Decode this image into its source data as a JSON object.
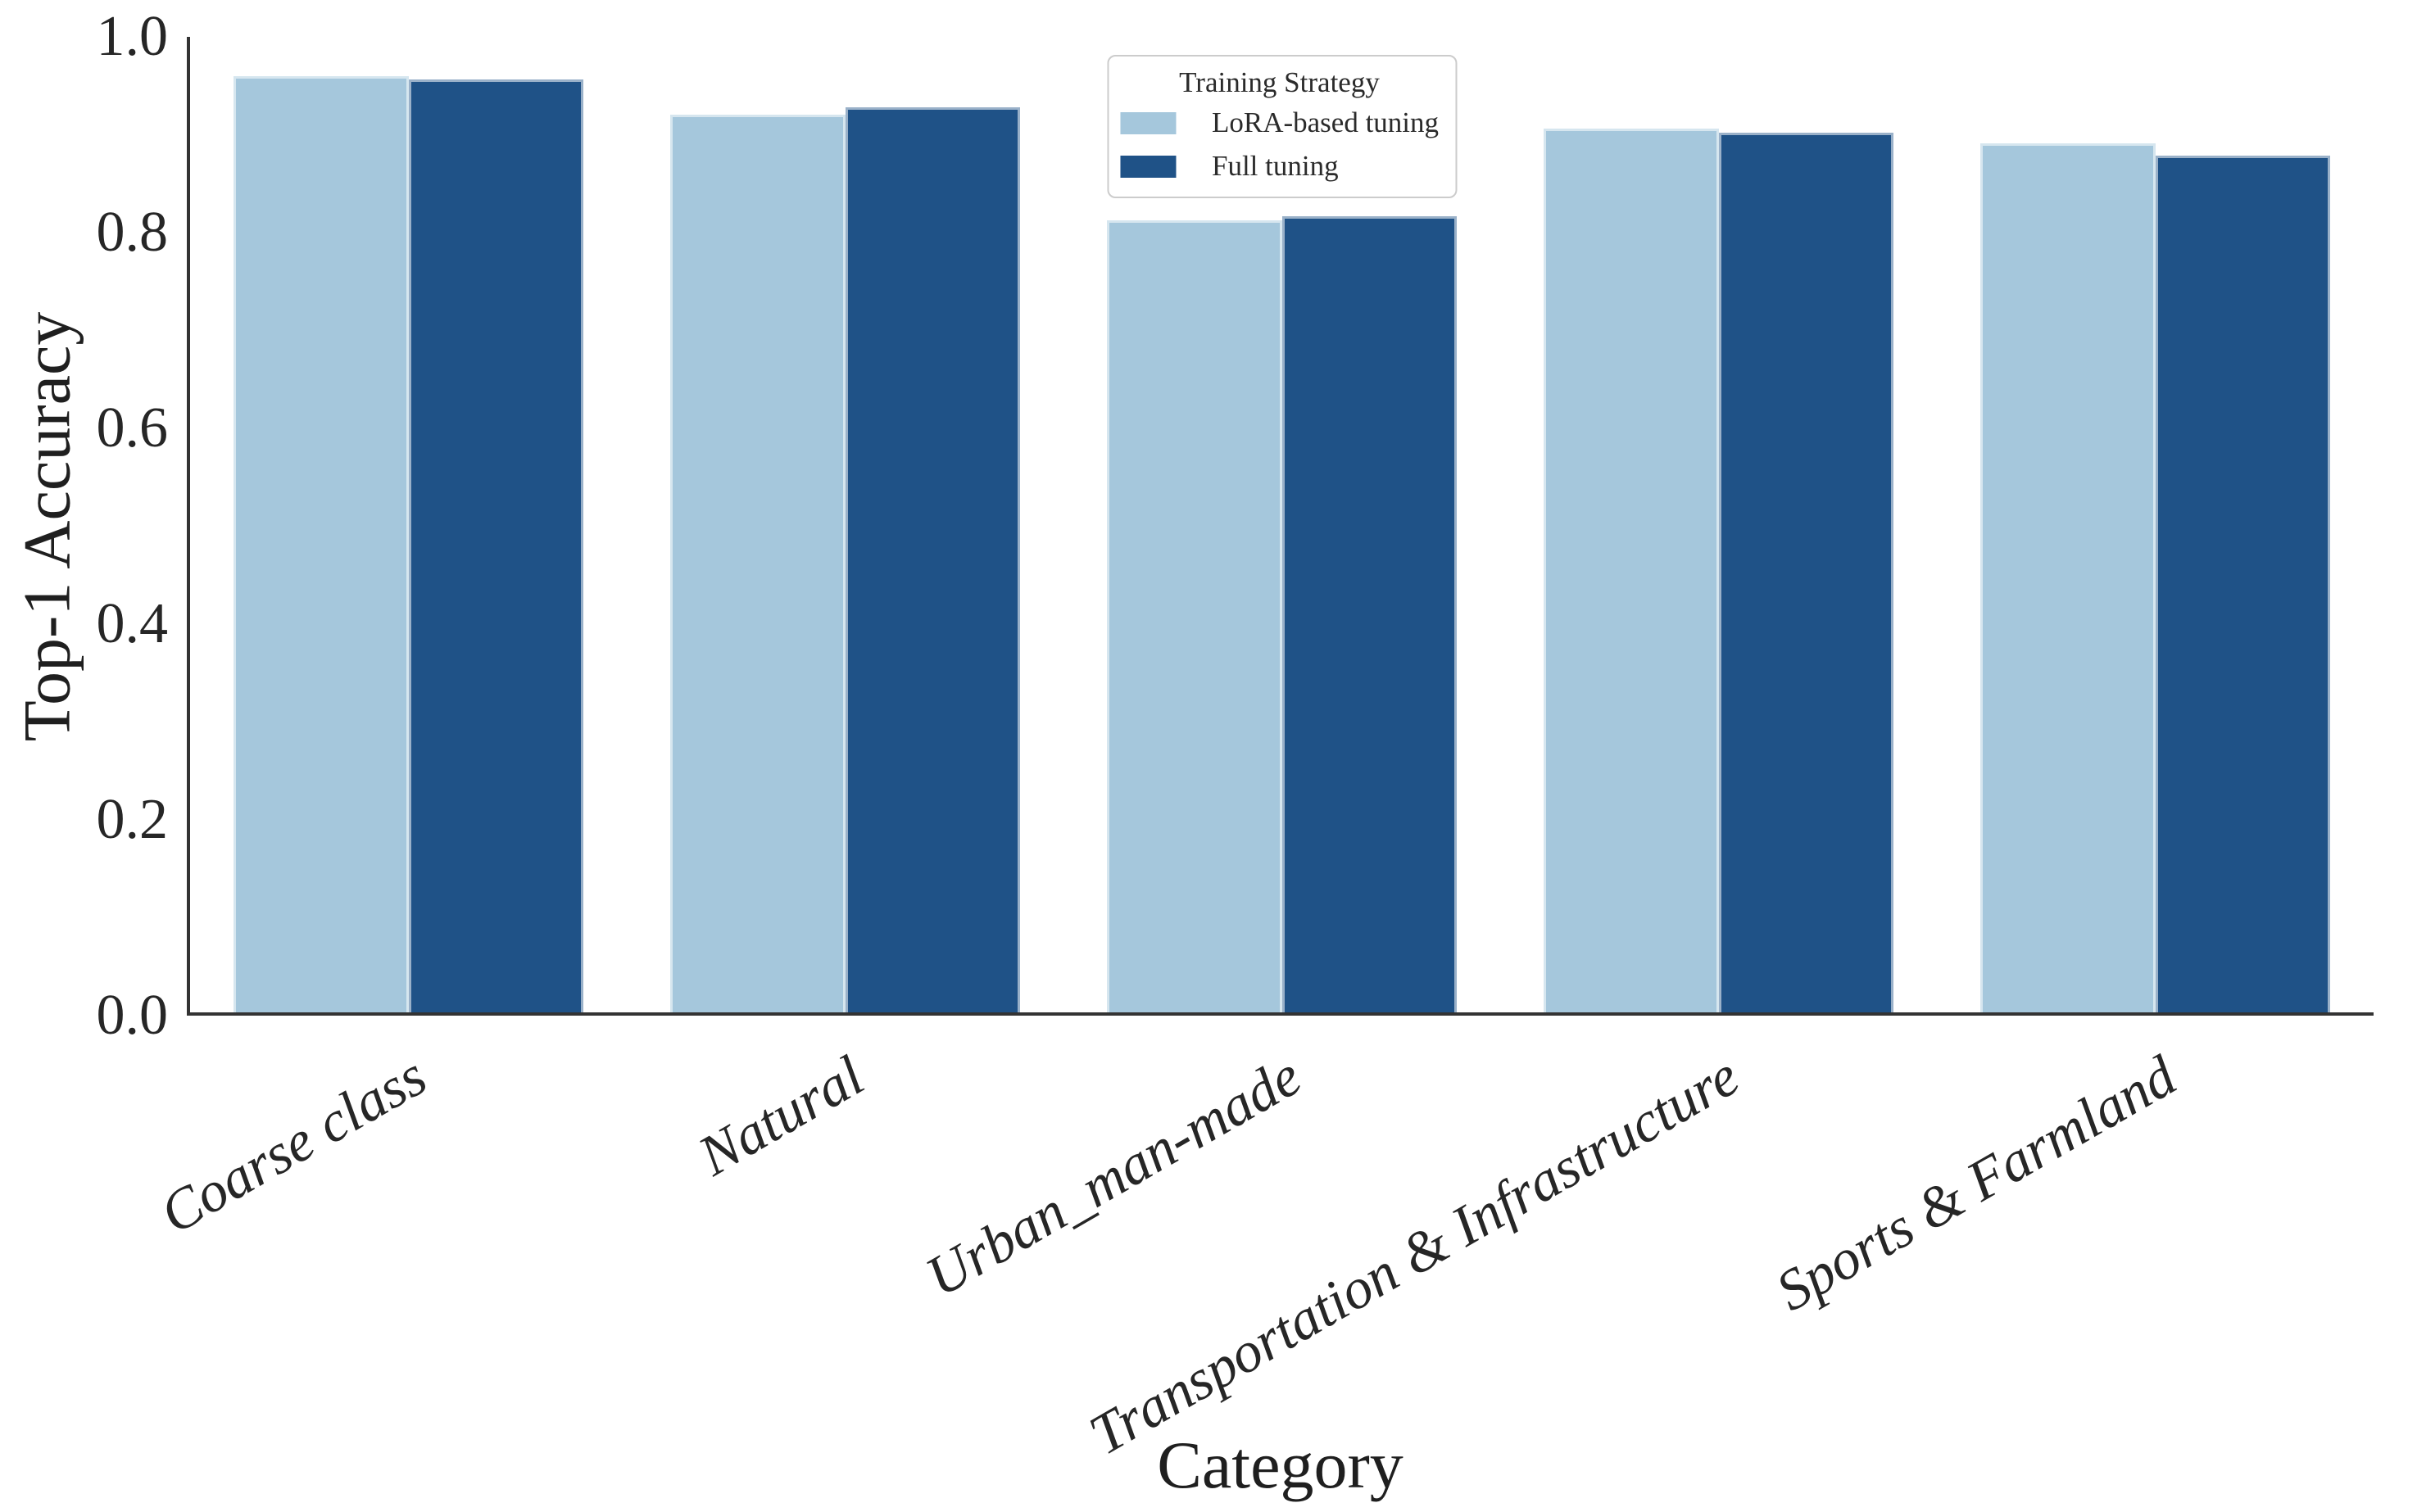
{
  "figure": {
    "background": "#ffffff",
    "spine_color": "#333333",
    "text_color": "#1f1f1f"
  },
  "chart_data": {
    "type": "bar",
    "title": "",
    "xlabel": "Category",
    "ylabel": "Top-1 Accuracy",
    "categories": [
      "Coarse class",
      "Natural",
      "Urban_man-made",
      "Transportation & Infrastructure",
      "Sports & Farmland"
    ],
    "series": [
      {
        "name": "LoRA-based tuning",
        "color": "#a5c7dc",
        "values": [
          0.96,
          0.92,
          0.812,
          0.906,
          0.891
        ]
      },
      {
        "name": "Full tuning",
        "color": "#1f5287",
        "values": [
          0.956,
          0.928,
          0.816,
          0.902,
          0.878
        ]
      }
    ],
    "ylim": [
      0.0,
      1.0
    ],
    "yticks": [
      "0.0",
      "0.2",
      "0.4",
      "0.6",
      "0.8",
      "1.0"
    ],
    "xtick_rotation_deg": 30,
    "grid": false,
    "bar_edge_color": "rgba(255,255,255,0.55)",
    "legend": {
      "title": "Training Strategy",
      "position": "upper center",
      "entries": [
        "LoRA-based tuning",
        "Full tuning"
      ]
    }
  }
}
